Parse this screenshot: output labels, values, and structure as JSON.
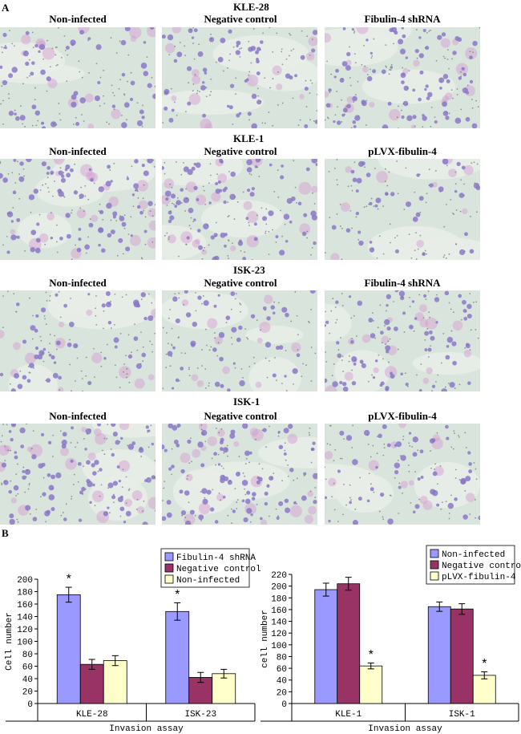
{
  "panel_a": {
    "letter": "A",
    "rows": [
      {
        "cell_line": "KLE-28",
        "conditions": [
          "Non-infected",
          "Negative control",
          "Fibulin-4 shRNA"
        ]
      },
      {
        "cell_line": "KLE-1",
        "conditions": [
          "Non-infected",
          "Negative control",
          "pLVX-fibulin-4"
        ]
      },
      {
        "cell_line": "ISK-23",
        "conditions": [
          "Non-infected",
          "Negative control",
          "Fibulin-4 shRNA"
        ]
      },
      {
        "cell_line": "ISK-1",
        "conditions": [
          "Non-infected",
          "Negative control",
          "pLVX-fibulin-4"
        ]
      }
    ]
  },
  "panel_b": {
    "letter": "B"
  },
  "colors": {
    "blue": "#9999ff",
    "maroon": "#993366",
    "cream": "#ffffcc",
    "micro_bg": "#d9e4dc",
    "cell_purple": "#8a78c8",
    "cell_pink": "#d59ad0"
  },
  "chart_data": [
    {
      "type": "bar",
      "categories": [
        "KLE-28",
        "ISK-23"
      ],
      "series": [
        {
          "name": "Fibulin-4 shRNA",
          "values": [
            175,
            148
          ],
          "errors": [
            12,
            14
          ],
          "color": "#9999ff"
        },
        {
          "name": "Negative control",
          "values": [
            63,
            42
          ],
          "errors": [
            8,
            8
          ],
          "color": "#993366"
        },
        {
          "name": "Non-infected",
          "values": [
            69,
            48
          ],
          "errors": [
            8,
            7
          ],
          "color": "#ffffcc"
        }
      ],
      "significance": [
        [
          "*",
          "",
          ""
        ],
        [
          "*",
          "",
          ""
        ]
      ],
      "xlabel": "Invasion assay",
      "ylabel": "Cell number",
      "ylim": [
        0,
        200
      ],
      "yticks": [
        0,
        20,
        40,
        60,
        80,
        100,
        120,
        140,
        160,
        180,
        200
      ],
      "legend": "top-right"
    },
    {
      "type": "bar",
      "categories": [
        "KLE-1",
        "ISK-1"
      ],
      "series": [
        {
          "name": "Non-infected",
          "values": [
            194,
            165
          ],
          "errors": [
            11,
            8
          ],
          "color": "#9999ff"
        },
        {
          "name": "Negative control",
          "values": [
            204,
            161
          ],
          "errors": [
            11,
            9
          ],
          "color": "#993366"
        },
        {
          "name": "pLVX-fibulin-4",
          "values": [
            64,
            48
          ],
          "errors": [
            5,
            6
          ],
          "color": "#ffffcc"
        }
      ],
      "significance": [
        [
          "",
          "",
          "*"
        ],
        [
          "",
          "",
          "*"
        ]
      ],
      "xlabel": "Invasion assay",
      "ylabel": "cell number",
      "ylim": [
        0,
        220
      ],
      "yticks": [
        0,
        20,
        40,
        60,
        80,
        100,
        120,
        140,
        160,
        180,
        200,
        220
      ],
      "legend": "top"
    }
  ]
}
